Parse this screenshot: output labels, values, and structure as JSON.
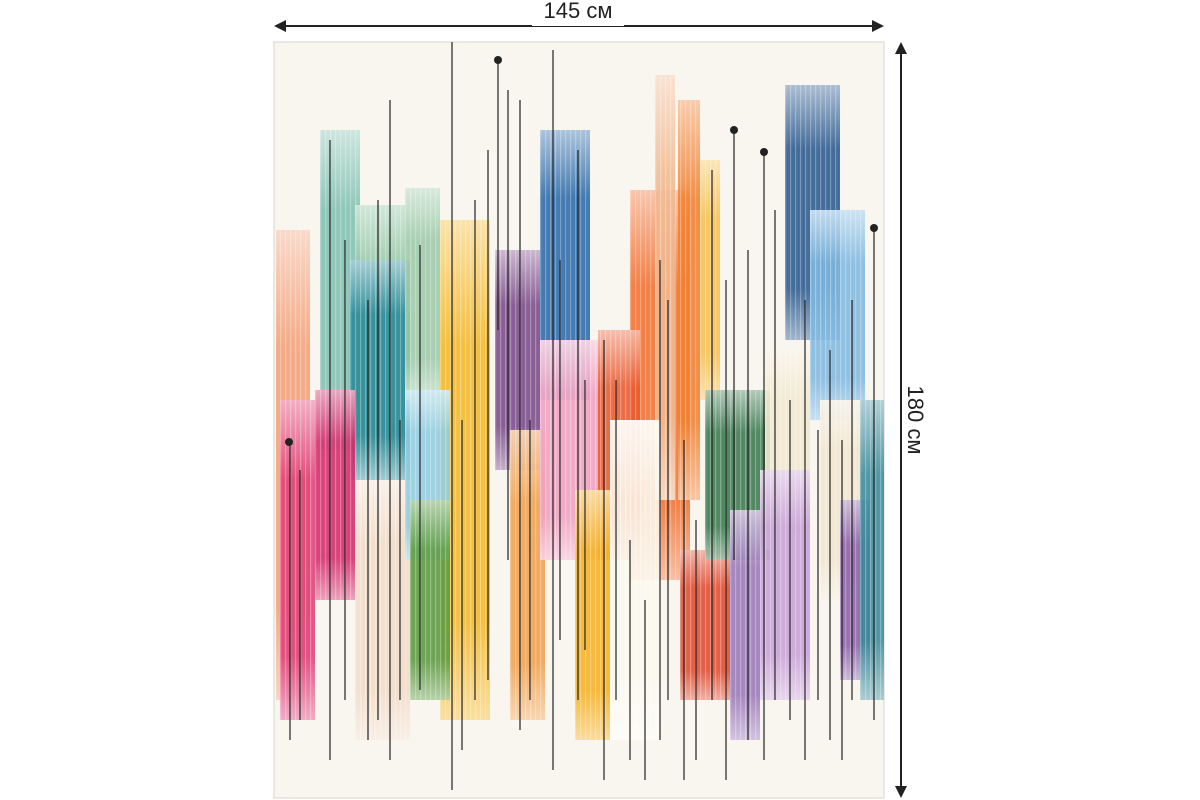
{
  "dimensions": {
    "width_label": "145 см",
    "height_label": "180 см"
  }
}
